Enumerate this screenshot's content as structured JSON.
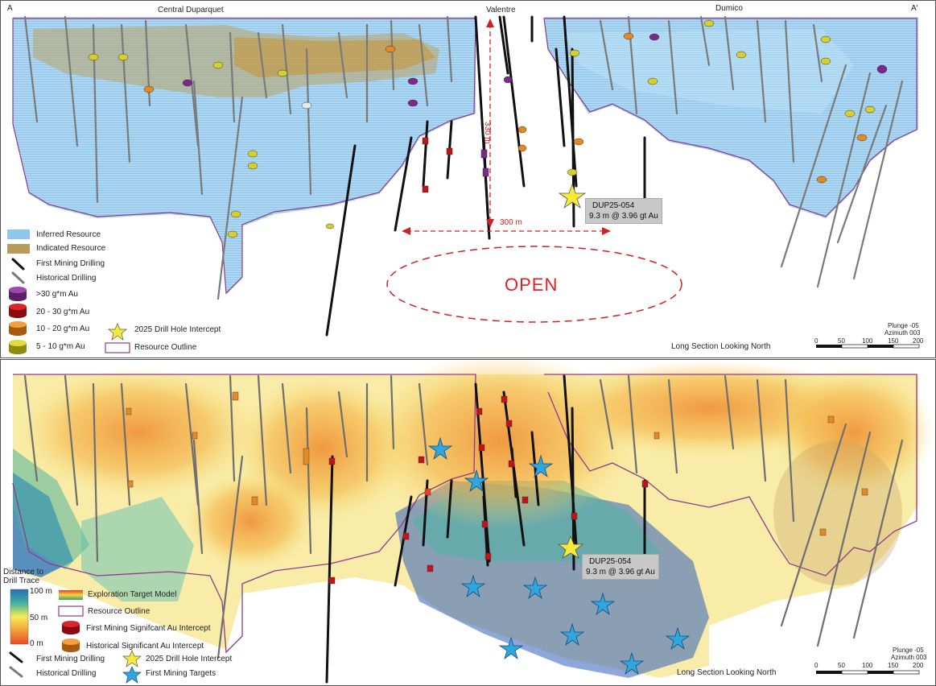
{
  "top_panel": {
    "corner_left": "A",
    "corner_right": "A'",
    "zones": [
      "Central Duparquet",
      "Valentre",
      "Dumico"
    ],
    "dim_vertical": "330 m",
    "dim_horizontal": "300 m",
    "open_label": "OPEN",
    "callout": {
      "hole": "DUP25-054",
      "intercept": "9.3 m @ 3.96 gt Au"
    },
    "section_label": "Long Section Looking North",
    "plunge": "Plunge -05",
    "azimuth": "Azimuth 003",
    "scale_ticks": [
      "0",
      "50",
      "100",
      "150",
      "200"
    ],
    "legend": [
      {
        "label": "Inferred Resource",
        "icon": "inferred-swatch",
        "color": "#8fc6ec"
      },
      {
        "label": "Indicated Resource",
        "icon": "indicated-swatch",
        "color": "#b89a5a"
      },
      {
        "label": "First Mining Drilling",
        "icon": "black-drill-icon"
      },
      {
        "label": "Historical Drilling",
        "icon": "grey-drill-icon"
      },
      {
        "label": ">30 g*m Au",
        "icon": "purple-cylinder-icon",
        "color": "#7b2a8c"
      },
      {
        "label": "20 - 30 g*m Au",
        "icon": "red-cylinder-icon",
        "color": "#c0141a"
      },
      {
        "label": "10 - 20 g*m Au",
        "icon": "orange-cylinder-icon",
        "color": "#e48a25"
      },
      {
        "label": "5 - 10 g*m Au",
        "icon": "yellow-cylinder-icon",
        "color": "#d7cf2e"
      },
      {
        "label": "2025 Drill Hole Intercept",
        "icon": "yellow-star-icon",
        "color": "#f3ea3a"
      },
      {
        "label": "Resource Outline",
        "icon": "outline-swatch",
        "color": "#8e3b8c"
      }
    ]
  },
  "bottom_panel": {
    "colorbar_title": "Distance to Drill Trace",
    "colorbar_ticks": [
      "100 m",
      "50 m",
      "0 m"
    ],
    "callout": {
      "hole": "DUP25-054",
      "intercept": "9.3 m @ 3.96 gt Au"
    },
    "section_label": "Long Section Looking North",
    "plunge": "Plunge -05",
    "azimuth": "Azimuth 003",
    "scale_ticks": [
      "0",
      "50",
      "100",
      "150",
      "200"
    ],
    "legend": [
      {
        "label": "Exploration Target Model",
        "icon": "gradient-swatch"
      },
      {
        "label": "Resource Outline",
        "icon": "outline-swatch",
        "color": "#8e3b8c"
      },
      {
        "label": "First Mining Signifcant Au Intercept",
        "icon": "red-cylinder-icon",
        "color": "#c0141a"
      },
      {
        "label": "Historical Significant Au Intercept",
        "icon": "orange-cylinder-icon",
        "color": "#e48a25"
      },
      {
        "label": "First Mining Drilling",
        "icon": "black-drill-icon"
      },
      {
        "label": "2025 Drill Hole Intercept",
        "icon": "yellow-star-icon",
        "color": "#f3ea3a"
      },
      {
        "label": "Historical Drilling",
        "icon": "grey-drill-icon"
      },
      {
        "label": "First Mining Targets",
        "icon": "blue-star-icon",
        "color": "#2fa6de"
      }
    ]
  }
}
